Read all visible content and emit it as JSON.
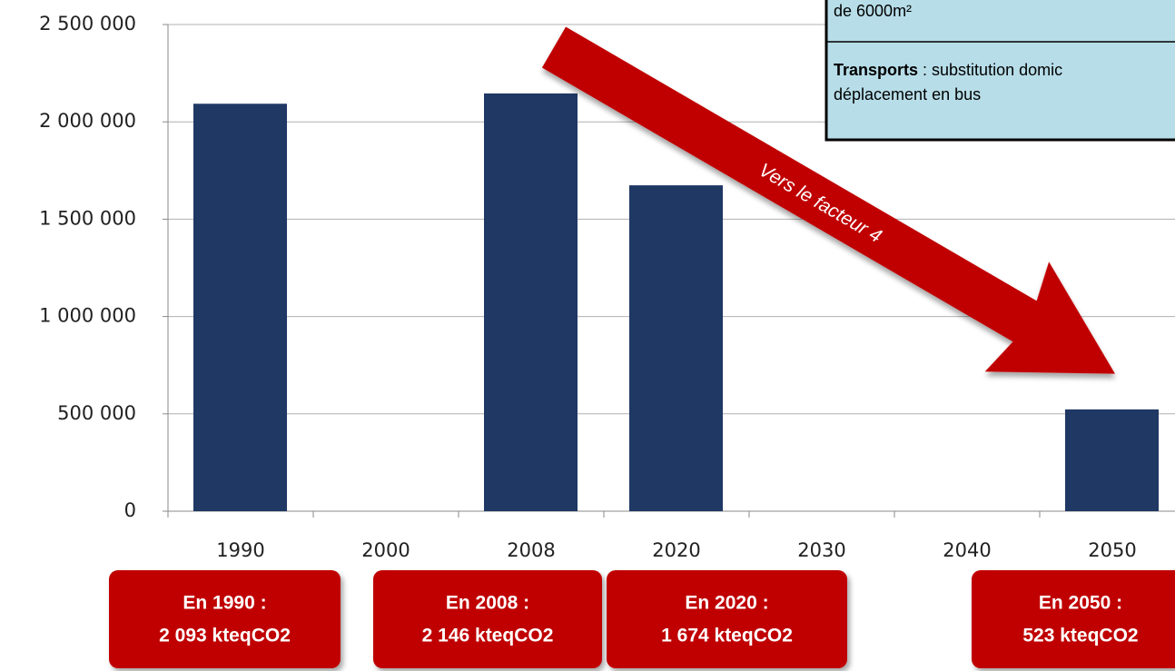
{
  "chart_data": {
    "type": "bar",
    "categories": [
      "1990",
      "2000",
      "2008",
      "2020",
      "2030",
      "2040",
      "2050"
    ],
    "values": [
      2093000,
      null,
      2146000,
      1674000,
      null,
      null,
      523000
    ],
    "color": "#1f3864",
    "ylim": [
      0,
      2500000
    ],
    "yticks": [
      0,
      {
        "value": 500000,
        "label": "500 000"
      },
      {
        "value": 1000000,
        "label": "1 000 000"
      },
      {
        "value": 1500000,
        "label": "1 500 000"
      },
      {
        "value": 2000000,
        "label": "2 000 000"
      },
      {
        "value": 2500000,
        "label": "2 500 000"
      }
    ],
    "grid": true,
    "arrow_label": "Vers le facteur 4",
    "callouts": [
      {
        "title": "En 1990 :",
        "text": "2 093 kteqCO2"
      },
      {
        "title": "En 2008 :",
        "text": "2 146 kteqCO2"
      },
      {
        "title": "En 2020 :",
        "text": "1 674 kteqCO2"
      },
      {
        "title": "En 2050 :",
        "text": "523 kteqCO2"
      }
    ],
    "info_box": {
      "line1": "de 6000m²",
      "bold": "Transports",
      "rest": ": substitution domic",
      "line3": "déplacement en bus"
    }
  }
}
